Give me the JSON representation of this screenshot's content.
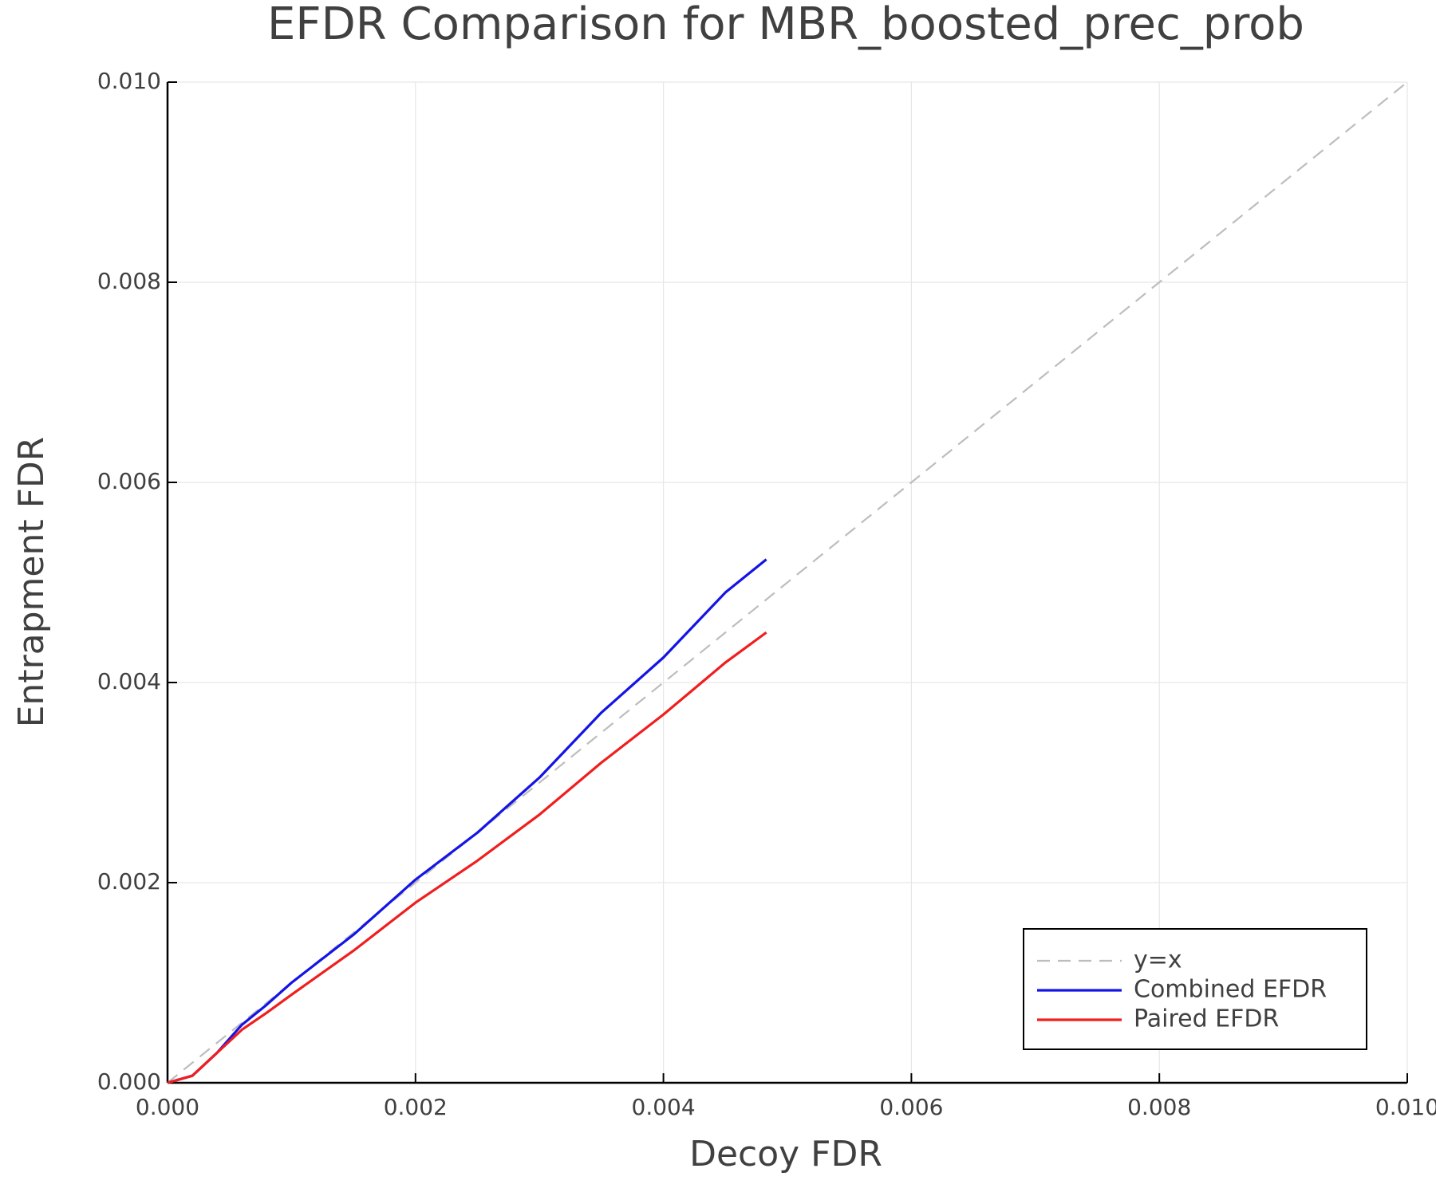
{
  "chart_data": {
    "type": "line",
    "title": "EFDR Comparison for MBR_boosted_prec_prob",
    "xlabel": "Decoy FDR",
    "ylabel": "Entrapment FDR",
    "xlim": [
      0,
      0.01
    ],
    "ylim": [
      0,
      0.01
    ],
    "xticks": [
      {
        "value": 0,
        "label": "0.000"
      },
      {
        "value": 0.002,
        "label": "0.002"
      },
      {
        "value": 0.004,
        "label": "0.004"
      },
      {
        "value": 0.006,
        "label": "0.006"
      },
      {
        "value": 0.008,
        "label": "0.008"
      },
      {
        "value": 0.01,
        "label": "0.010"
      }
    ],
    "yticks": [
      {
        "value": 0,
        "label": "0.000"
      },
      {
        "value": 0.002,
        "label": "0.002"
      },
      {
        "value": 0.004,
        "label": "0.004"
      },
      {
        "value": 0.006,
        "label": "0.006"
      },
      {
        "value": 0.008,
        "label": "0.008"
      },
      {
        "value": 0.01,
        "label": "0.010"
      }
    ],
    "grid": true,
    "legend": "lower right",
    "series": [
      {
        "name": "y=x",
        "color": "#bdbdbd",
        "dash": true,
        "x": [
          0,
          0.01
        ],
        "values": [
          0,
          0.01
        ]
      },
      {
        "name": "Combined EFDR",
        "color": "#1414e6",
        "dash": false,
        "x": [
          0,
          0.0002,
          0.0004,
          0.0006,
          0.0008,
          0.001,
          0.0015,
          0.002,
          0.0025,
          0.003,
          0.0035,
          0.004,
          0.0045,
          0.00483
        ],
        "values": [
          0,
          7e-05,
          0.0003,
          0.00058,
          0.00078,
          0.001,
          0.00148,
          0.00203,
          0.0025,
          0.00305,
          0.0037,
          0.00425,
          0.0049,
          0.00523
        ]
      },
      {
        "name": "Paired EFDR",
        "color": "#f01e1e",
        "dash": false,
        "x": [
          0,
          0.0002,
          0.0004,
          0.0006,
          0.0008,
          0.001,
          0.0015,
          0.002,
          0.0025,
          0.003,
          0.0035,
          0.004,
          0.0045,
          0.00483
        ],
        "values": [
          0,
          7e-05,
          0.0003,
          0.00053,
          0.0007,
          0.00088,
          0.00132,
          0.0018,
          0.00222,
          0.00268,
          0.0032,
          0.00368,
          0.0042,
          0.0045
        ]
      }
    ]
  }
}
